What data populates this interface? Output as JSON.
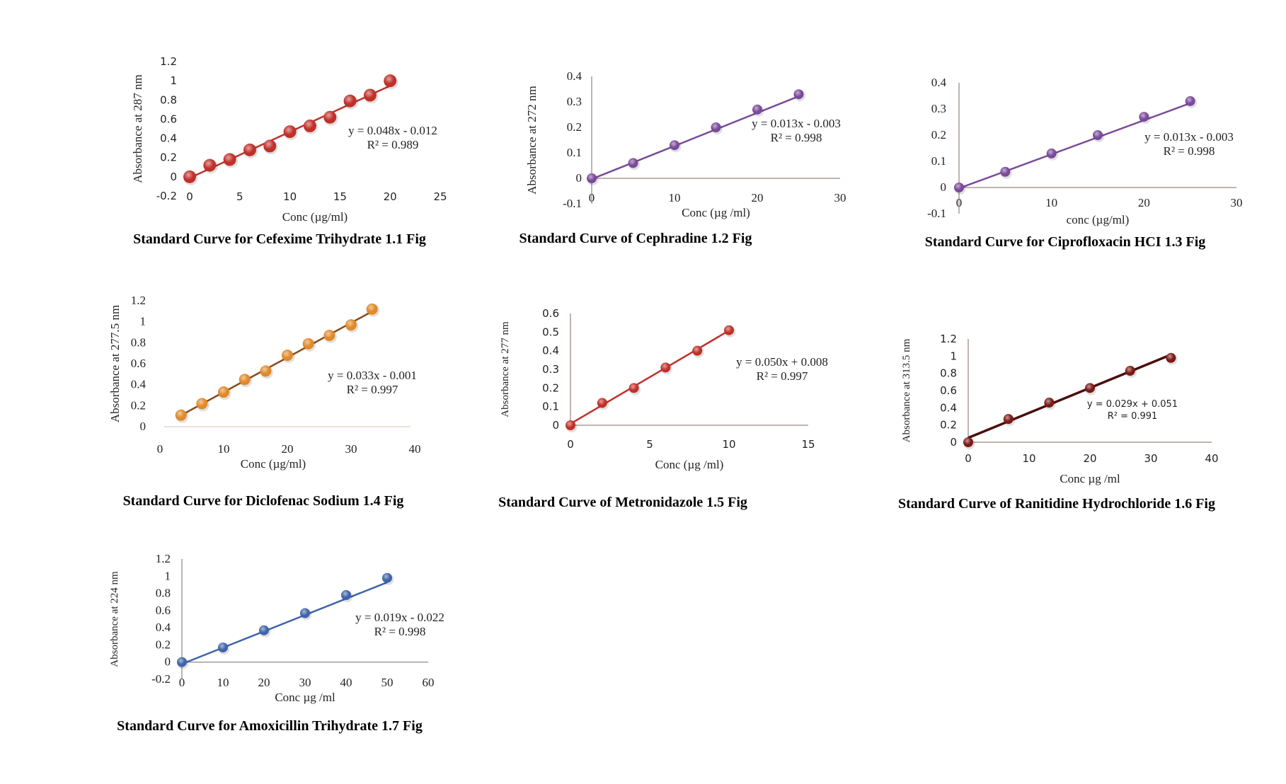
{
  "chart_data": [
    {
      "id": "cefexime",
      "type": "scatter",
      "title": "Standard Curve for Cefexime Trihydrate 1.1 Fig",
      "xlabel": "Conc (µg/ml)",
      "ylabel": "Absorbance at 287 nm",
      "xlim": [
        0,
        25
      ],
      "ylim": [
        -0.2,
        1.2
      ],
      "xticks": [
        "0",
        "5",
        "10",
        "15",
        "20",
        "25"
      ],
      "yticks": [
        "-0.2",
        "0",
        "0.2",
        "0.4",
        "0.6",
        "0.8",
        "1",
        "1.2"
      ],
      "x": [
        0,
        2,
        4,
        6,
        8,
        10,
        12,
        14,
        16,
        18,
        20
      ],
      "y": [
        0,
        0.12,
        0.18,
        0.28,
        0.32,
        0.47,
        0.53,
        0.62,
        0.79,
        0.85,
        1.0
      ],
      "trendline": {
        "slope": 0.048,
        "intercept": -0.012
      },
      "equation": "y = 0.048x - 0.012",
      "r_squared": "R² = 0.989",
      "color": "#c0302a",
      "axis_lines": false,
      "grid": false
    },
    {
      "id": "cephradine",
      "type": "scatter",
      "title": "Standard Curve of Cephradine 1.2 Fig",
      "xlabel": "Conc (µg /ml)",
      "ylabel": "Absorbance at 272 nm",
      "xlim": [
        0,
        30
      ],
      "ylim": [
        -0.1,
        0.4
      ],
      "xticks": [
        "0",
        "10",
        "20",
        "30"
      ],
      "yticks": [
        "-0.1",
        "0",
        "0.1",
        "0.2",
        "0.3",
        "0.4"
      ],
      "x": [
        0,
        5,
        10,
        15,
        20,
        25
      ],
      "y": [
        0,
        0.06,
        0.13,
        0.2,
        0.27,
        0.33
      ],
      "trendline": {
        "slope": 0.013,
        "intercept": -0.003
      },
      "equation": "y = 0.013x - 0.003",
      "r_squared": "R² = 0.998",
      "color": "#7a4a9a",
      "axis_lines": true,
      "grid": false
    },
    {
      "id": "ciprofloxacin",
      "type": "scatter",
      "title": "Standard Curve for Ciprofloxacin HCI 1.3 Fig",
      "xlabel": "conc (µg/ml)",
      "ylabel": "",
      "xlim": [
        0,
        30
      ],
      "ylim": [
        -0.1,
        0.4
      ],
      "xticks": [
        "0",
        "10",
        "20",
        "30"
      ],
      "yticks": [
        "-0.1",
        "0",
        "0.1",
        "0.2",
        "0.3",
        "0.4"
      ],
      "x": [
        0,
        5,
        10,
        15,
        20,
        25
      ],
      "y": [
        0,
        0.06,
        0.13,
        0.2,
        0.27,
        0.33
      ],
      "trendline": {
        "slope": 0.013,
        "intercept": -0.003
      },
      "equation": "y = 0.013x - 0.003",
      "r_squared": "R² = 0.998",
      "color": "#7a4a9a",
      "axis_lines": true,
      "grid": false
    },
    {
      "id": "diclofenac",
      "type": "scatter",
      "title": "Standard Curve for Diclofenac Sodium 1.4 Fig",
      "xlabel": "Conc  (µg/ml)",
      "ylabel": "Absorbance at 277.5 nm",
      "xlim": [
        0,
        40
      ],
      "ylim": [
        0,
        1.2
      ],
      "xticks": [
        "0",
        "10",
        "20",
        "30",
        "40"
      ],
      "yticks": [
        "0",
        "0.2",
        "0.4",
        "0.6",
        "0.8",
        "1",
        "1.2"
      ],
      "x": [
        3.3,
        6.6,
        10,
        13.3,
        16.6,
        20,
        23.3,
        26.6,
        30,
        33.3
      ],
      "y": [
        0.11,
        0.22,
        0.33,
        0.45,
        0.53,
        0.68,
        0.79,
        0.87,
        0.97,
        1.12
      ],
      "trendline": {
        "slope": 0.033,
        "intercept": -0.001
      },
      "equation": "y = 0.033x - 0.001",
      "r_squared": "R² = 0.997",
      "color": "#e08a2a",
      "line_color": "#8a4a1a",
      "axis_lines": false,
      "grid": false
    },
    {
      "id": "metronidazole",
      "type": "scatter",
      "title": "Standard Curve of Metronidazole 1.5 Fig",
      "xlabel": "Conc (µg /ml)",
      "ylabel": "Absorbance at 277 nm",
      "xlim": [
        0,
        15
      ],
      "ylim": [
        0,
        0.6
      ],
      "xticks": [
        "0",
        "5",
        "10",
        "15"
      ],
      "yticks": [
        "0",
        "0.1",
        "0.2",
        "0.3",
        "0.4",
        "0.5",
        "0.6"
      ],
      "x": [
        0,
        2,
        4,
        6,
        8,
        10
      ],
      "y": [
        0,
        0.12,
        0.2,
        0.31,
        0.4,
        0.51
      ],
      "trendline": {
        "slope": 0.05,
        "intercept": 0.008
      },
      "equation": "y = 0.050x + 0.008",
      "r_squared": "R² = 0.997",
      "color": "#c0302a",
      "axis_lines": true,
      "grid": false
    },
    {
      "id": "ranitidine",
      "type": "scatter",
      "title": "Standard Curve of Ranitidine Hydrochloride 1.6 Fig",
      "xlabel": "Conc µg /ml",
      "ylabel": "Absorbance at 313.5 nm",
      "xlim": [
        0,
        40
      ],
      "ylim": [
        0,
        1.2
      ],
      "xticks": [
        "0",
        "10",
        "20",
        "30",
        "40"
      ],
      "yticks": [
        "0",
        "0.2",
        "0.4",
        "0.6",
        "0.8",
        "1",
        "1.2"
      ],
      "x": [
        0,
        6.6,
        13.3,
        20,
        26.6,
        33.3
      ],
      "y": [
        0,
        0.27,
        0.46,
        0.63,
        0.83,
        0.98
      ],
      "trendline": {
        "slope": 0.029,
        "intercept": 0.051
      },
      "equation": "y = 0.029x + 0.051",
      "r_squared": "R² = 0.991",
      "color": "#7a1a16",
      "line_color": "#4a0e0c",
      "axis_lines": true,
      "grid": false
    },
    {
      "id": "amoxicillin",
      "type": "scatter",
      "title": "Standard Curve for Amoxicillin Trihydrate 1.7 Fig",
      "xlabel": "Conc µg /ml",
      "ylabel": "Absorbance at 224 nm",
      "xlim": [
        0,
        60
      ],
      "ylim": [
        -0.2,
        1.2
      ],
      "xticks": [
        "0",
        "10",
        "20",
        "30",
        "40",
        "50",
        "60"
      ],
      "yticks": [
        "-0.2",
        "0",
        "0.2",
        "0.4",
        "0.6",
        "0.8",
        "1",
        "1.2"
      ],
      "x": [
        0,
        10,
        20,
        30,
        40,
        50
      ],
      "y": [
        0,
        0.17,
        0.37,
        0.57,
        0.78,
        0.98
      ],
      "trendline": {
        "slope": 0.019,
        "intercept": -0.022
      },
      "equation": "y = 0.019x - 0.022",
      "r_squared": "R² = 0.998",
      "color": "#3f64a8",
      "axis_lines": true,
      "grid": false
    }
  ]
}
